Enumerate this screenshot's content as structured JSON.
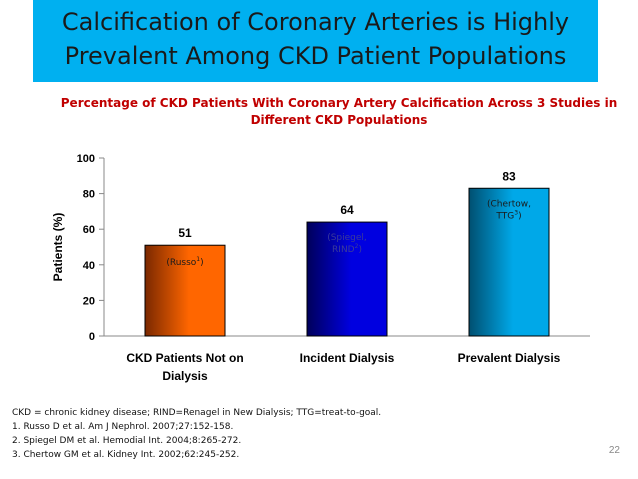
{
  "slide": {
    "title_line1": "Calcification of Coronary Arteries is Highly",
    "title_line2": "Prevalent Among CKD Patient Populations",
    "subtitle_line1": "Percentage of CKD Patients With Coronary Artery Calcification Across 3 Studies in",
    "subtitle_line2": "Different CKD Populations",
    "slide_number": "22",
    "title_bg_color": "#00B0F0",
    "subtitle_color": "#C00000"
  },
  "footnotes": [
    "CKD = chronic kidney disease; RIND=Renagel in New Dialysis; TTG=treat-to-goal.",
    "1.  Russo D et al. Am J Nephrol. 2007;27:152-158.",
    "2.  Spiegel DM et al. Hemodial Int. 2004;8:265-272.",
    "3.  Chertow GM et al. Kidney Int. 2002;62:245-252."
  ],
  "chart_data": {
    "type": "bar",
    "title": "Percentage of CKD Patients With Coronary Artery Calcification Across 3 Studies in Different CKD Populations",
    "categories": [
      [
        "CKD Patients Not on",
        "Dialysis"
      ],
      [
        "Incident Dialysis"
      ],
      [
        "Prevalent Dialysis"
      ]
    ],
    "values": [
      51,
      64,
      83
    ],
    "value_labels": [
      "51",
      "64",
      "83"
    ],
    "study_labels": [
      {
        "name": "Russo",
        "sup": "1"
      },
      {
        "name": "Spiegel, RIND",
        "sup": "2",
        "lines": [
          "(Spiegel,",
          "RIND"
        ]
      },
      {
        "name": "Chertow, TTG",
        "sup": "3",
        "lines": [
          "(Chertow,",
          "TTG"
        ]
      }
    ],
    "colors": [
      "#FF6600",
      "#0000E0",
      "#00A8E8"
    ],
    "gradient_dark": [
      "#7a2800",
      "#00005a",
      "#004f70"
    ],
    "ylabel": "Patients (%)",
    "xlabel": "",
    "ylim": [
      0,
      100
    ],
    "yticks": [
      0,
      20,
      40,
      60,
      80,
      100
    ],
    "grid": false
  }
}
